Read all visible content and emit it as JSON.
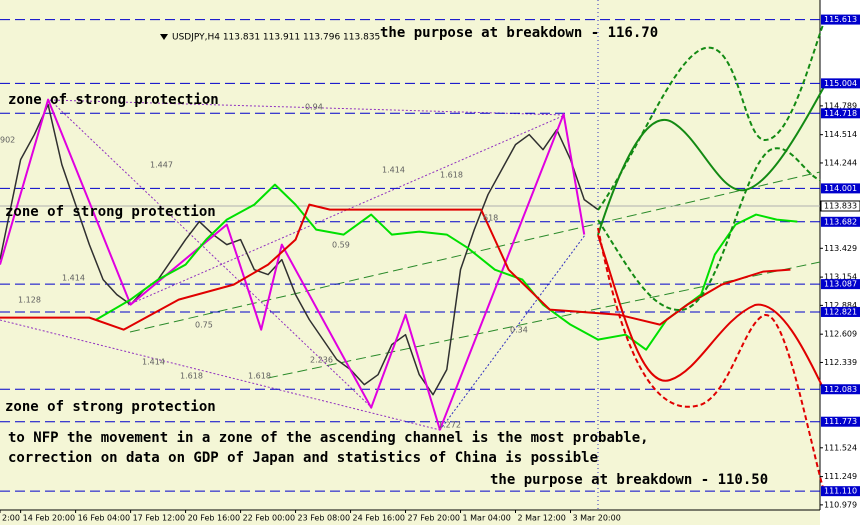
{
  "chart_data": {
    "type": "line",
    "title": "USDJPY,H4 113.831 113.911 113.796 113.835",
    "annotations": [
      "the purpose at breakdown - 116.70",
      "zone of strong protection",
      "zone of strong protection",
      "zone of strong protection",
      "to NFP the movement in a zone of the ascending channel is the most probable,",
      "correction on data on GDP of Japan and statistics of China is possible",
      "the purpose at breakdown - 110.50"
    ],
    "fib_labels": [
      "902",
      "0.94",
      "1.447",
      "1.414",
      "1.618",
      "618",
      "0.59",
      "1.414",
      "1.128",
      "0.75",
      "2.236",
      "0.34",
      "1.414",
      "1.618",
      "1.618",
      "1.272"
    ],
    "xlim": [
      -3,
      116.3
    ],
    "xticks": [
      {
        "value": -3,
        "label": "2:00"
      },
      {
        "value": 0,
        "label": "14 Feb 20:00"
      },
      {
        "value": 8,
        "label": "16 Feb 04:00"
      },
      {
        "value": 16,
        "label": "17 Feb 12:00"
      },
      {
        "value": 24,
        "label": "20 Feb 16:00"
      },
      {
        "value": 32,
        "label": "22 Feb 00:00"
      },
      {
        "value": 40,
        "label": "23 Feb 08:00"
      },
      {
        "value": 48,
        "label": "24 Feb 16:00"
      },
      {
        "value": 56,
        "label": "27 Feb 20:00"
      },
      {
        "value": 64,
        "label": "1 Mar 04:00"
      },
      {
        "value": 72,
        "label": "2 Mar 12:00"
      },
      {
        "value": 80,
        "label": "3 Mar 20:00"
      }
    ],
    "ylim": [
      110.93,
      115.8
    ],
    "yticks": [
      114.789,
      114.514,
      114.244,
      113.429,
      113.154,
      112.884,
      112.609,
      112.339,
      111.524,
      111.249,
      110.979
    ],
    "levels": [
      115.613,
      115.004,
      114.718,
      114.001,
      113.682,
      113.087,
      112.821,
      112.083,
      111.773,
      {
        "value": 111.11,
        "label": "111.110"
      }
    ],
    "level_color": "#0000cc",
    "last_price": 113.833,
    "series": [
      {
        "color": "#303030",
        "x": [
          -3,
          0,
          2,
          4,
          6,
          8,
          10,
          12,
          14,
          16,
          18,
          20,
          22,
          24,
          26,
          28,
          30,
          32,
          34,
          36,
          38,
          40,
          42,
          44,
          46,
          48,
          50,
          52,
          54,
          56,
          58,
          60,
          62,
          64,
          66,
          68,
          70,
          72,
          74,
          76,
          78,
          80,
          82,
          84
        ],
        "values": [
          113.321,
          114.276,
          114.515,
          114.801,
          114.228,
          113.846,
          113.464,
          113.13,
          112.987,
          112.891,
          113.034,
          113.13,
          113.321,
          113.512,
          113.684,
          113.56,
          113.464,
          113.512,
          113.225,
          113.178,
          113.321,
          112.987,
          112.748,
          112.557,
          112.366,
          112.27,
          112.127,
          112.222,
          112.509,
          112.604,
          112.222,
          112.031,
          112.27,
          113.225,
          113.607,
          113.942,
          114.18,
          114.419,
          114.515,
          114.371,
          114.562,
          114.276,
          113.894,
          113.798
        ]
      },
      {
        "color": "#e000e0",
        "x": [
          -3,
          4,
          16,
          30,
          35,
          38,
          51,
          56,
          61,
          79,
          82
        ],
        "values": [
          113.273,
          114.849,
          112.891,
          113.655,
          112.652,
          113.464,
          111.907,
          112.795,
          111.697,
          114.71,
          113.56
        ]
      },
      {
        "color": "#00e000",
        "x": [
          11,
          16,
          20,
          24,
          27,
          30,
          34,
          37,
          40,
          43,
          47,
          51,
          54,
          58,
          62,
          65,
          69,
          73,
          76,
          80,
          84,
          88,
          91,
          94,
          99,
          101,
          104,
          107,
          110,
          113
        ],
        "values": [
          112.748,
          112.939,
          113.13,
          113.273,
          113.512,
          113.703,
          113.846,
          114.037,
          113.846,
          113.607,
          113.56,
          113.751,
          113.56,
          113.588,
          113.56,
          113.435,
          113.225,
          113.13,
          112.891,
          112.7,
          112.557,
          112.604,
          112.461,
          112.748,
          112.987,
          113.369,
          113.655,
          113.751,
          113.703,
          113.684
        ]
      },
      {
        "color": "#e00000",
        "x": [
          -3,
          10,
          15,
          23,
          31,
          36,
          40,
          42,
          45,
          67,
          69,
          71,
          74,
          77,
          81,
          87,
          93,
          97,
          102,
          108,
          112
        ],
        "values": [
          112.767,
          112.767,
          112.652,
          112.939,
          113.082,
          113.273,
          113.512,
          113.846,
          113.798,
          113.798,
          113.512,
          113.225,
          113.034,
          112.843,
          112.824,
          112.795,
          112.7,
          112.891,
          113.082,
          113.206,
          113.225
        ]
      }
    ]
  }
}
